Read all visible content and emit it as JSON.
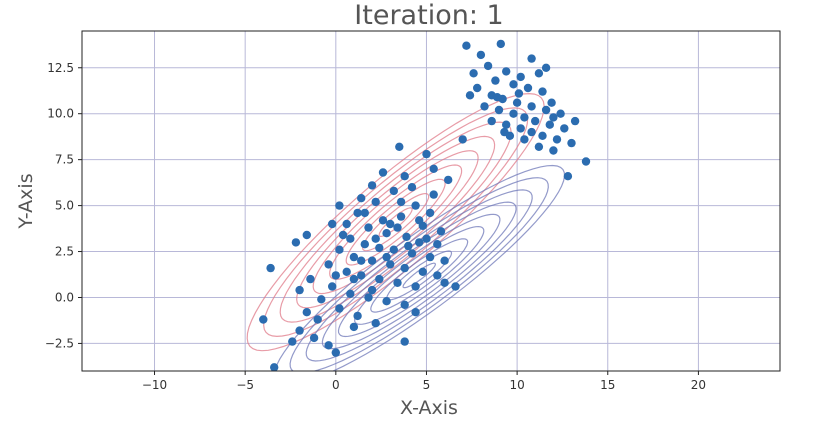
{
  "chart_data": {
    "type": "scatter",
    "title": "Iteration: 1",
    "xlabel": "X-Axis",
    "ylabel": "Y-Axis",
    "xlim": [
      -14,
      24.5
    ],
    "ylim": [
      -4,
      14.5
    ],
    "grid": true,
    "x_ticks": [
      {
        "value": -10,
        "label": "−10"
      },
      {
        "value": -5,
        "label": "−5"
      },
      {
        "value": 0,
        "label": "0"
      },
      {
        "value": 5,
        "label": "5"
      },
      {
        "value": 10,
        "label": "10"
      },
      {
        "value": 15,
        "label": "15"
      },
      {
        "value": 20,
        "label": "20"
      }
    ],
    "y_ticks": [
      {
        "value": -2.5,
        "label": "−2.5"
      },
      {
        "value": 0,
        "label": "0.0"
      },
      {
        "value": 2.5,
        "label": "2.5"
      },
      {
        "value": 5,
        "label": "5.0"
      },
      {
        "value": 7.5,
        "label": "7.5"
      },
      {
        "value": 10,
        "label": "10.0"
      },
      {
        "value": 12.5,
        "label": "12.5"
      }
    ],
    "point_color": "#2b6cb0",
    "grid_color": "#b8b8d8",
    "points": [
      [
        7.2,
        13.7
      ],
      [
        9.1,
        13.8
      ],
      [
        8.0,
        13.2
      ],
      [
        10.8,
        13.0
      ],
      [
        11.6,
        12.5
      ],
      [
        8.4,
        12.6
      ],
      [
        7.6,
        12.2
      ],
      [
        9.4,
        12.3
      ],
      [
        10.2,
        12.0
      ],
      [
        11.2,
        12.2
      ],
      [
        8.8,
        11.8
      ],
      [
        9.8,
        11.6
      ],
      [
        10.6,
        11.4
      ],
      [
        11.4,
        11.2
      ],
      [
        7.8,
        11.4
      ],
      [
        8.6,
        11.0
      ],
      [
        9.2,
        10.8
      ],
      [
        10.0,
        10.6
      ],
      [
        10.8,
        10.4
      ],
      [
        11.6,
        10.2
      ],
      [
        12.0,
        9.8
      ],
      [
        8.2,
        10.4
      ],
      [
        9.0,
        10.2
      ],
      [
        9.8,
        10.0
      ],
      [
        10.4,
        9.8
      ],
      [
        11.0,
        9.6
      ],
      [
        11.8,
        9.4
      ],
      [
        12.6,
        9.2
      ],
      [
        13.2,
        9.6
      ],
      [
        8.6,
        9.6
      ],
      [
        9.4,
        9.4
      ],
      [
        10.2,
        9.2
      ],
      [
        10.8,
        9.0
      ],
      [
        11.4,
        8.8
      ],
      [
        12.2,
        8.6
      ],
      [
        13.0,
        8.4
      ],
      [
        9.6,
        8.8
      ],
      [
        10.4,
        8.6
      ],
      [
        11.2,
        8.2
      ],
      [
        12.0,
        8.0
      ],
      [
        12.8,
        6.6
      ],
      [
        13.8,
        7.4
      ],
      [
        8.9,
        10.9
      ],
      [
        10.1,
        11.1
      ],
      [
        11.9,
        10.6
      ],
      [
        7.4,
        11.0
      ],
      [
        12.4,
        10.0
      ],
      [
        9.3,
        9.0
      ],
      [
        3.5,
        8.2
      ],
      [
        5.0,
        7.8
      ],
      [
        7.0,
        8.6
      ],
      [
        5.4,
        7.0
      ],
      [
        3.8,
        6.6
      ],
      [
        2.0,
        6.1
      ],
      [
        6.2,
        6.4
      ],
      [
        4.2,
        6.0
      ],
      [
        3.2,
        5.8
      ],
      [
        0.2,
        5.0
      ],
      [
        2.2,
        5.2
      ],
      [
        4.4,
        5.0
      ],
      [
        5.2,
        4.6
      ],
      [
        1.2,
        4.6
      ],
      [
        0.6,
        4.0
      ],
      [
        2.6,
        4.2
      ],
      [
        3.6,
        4.4
      ],
      [
        4.8,
        3.9
      ],
      [
        5.8,
        3.6
      ],
      [
        1.8,
        3.8
      ],
      [
        2.8,
        3.5
      ],
      [
        3.9,
        3.3
      ],
      [
        4.6,
        3.0
      ],
      [
        5.6,
        2.9
      ],
      [
        0.8,
        3.2
      ],
      [
        1.6,
        2.9
      ],
      [
        2.4,
        2.7
      ],
      [
        3.2,
        2.6
      ],
      [
        4.2,
        2.4
      ],
      [
        5.2,
        2.2
      ],
      [
        6.0,
        2.0
      ],
      [
        0.2,
        2.6
      ],
      [
        1.0,
        2.2
      ],
      [
        2.0,
        2.0
      ],
      [
        3.0,
        1.8
      ],
      [
        3.8,
        1.6
      ],
      [
        4.8,
        1.4
      ],
      [
        5.6,
        1.2
      ],
      [
        -0.4,
        1.8
      ],
      [
        0.6,
        1.4
      ],
      [
        1.4,
        1.2
      ],
      [
        2.4,
        1.0
      ],
      [
        3.4,
        0.8
      ],
      [
        4.4,
        0.6
      ],
      [
        6.0,
        0.8
      ],
      [
        -0.2,
        0.6
      ],
      [
        0.8,
        0.2
      ],
      [
        1.8,
        0.0
      ],
      [
        2.8,
        -0.2
      ],
      [
        3.8,
        -0.4
      ],
      [
        4.4,
        -0.8
      ],
      [
        -0.8,
        -0.1
      ],
      [
        0.2,
        -0.6
      ],
      [
        1.2,
        -1.0
      ],
      [
        2.2,
        -1.4
      ],
      [
        1.0,
        -1.6
      ],
      [
        -1.0,
        -1.2
      ],
      [
        -1.6,
        -0.8
      ],
      [
        -2.0,
        0.4
      ],
      [
        -1.4,
        1.0
      ],
      [
        -2.2,
        3.0
      ],
      [
        -1.6,
        3.4
      ],
      [
        -3.6,
        1.6
      ],
      [
        -2.0,
        -1.8
      ],
      [
        -2.4,
        -2.4
      ],
      [
        -1.2,
        -2.2
      ],
      [
        -0.4,
        -2.6
      ],
      [
        0.0,
        -3.0
      ],
      [
        -4.0,
        -1.2
      ],
      [
        -3.4,
        -3.8
      ],
      [
        3.8,
        -2.4
      ],
      [
        6.6,
        0.6
      ],
      [
        1.4,
        5.4
      ],
      [
        2.6,
        6.8
      ],
      [
        -0.2,
        4.0
      ],
      [
        1.4,
        2.0
      ],
      [
        2.2,
        3.2
      ],
      [
        3.0,
        4.0
      ],
      [
        4.0,
        2.8
      ],
      [
        4.6,
        4.2
      ],
      [
        5.0,
        3.2
      ],
      [
        1.0,
        1.0
      ],
      [
        2.0,
        0.4
      ],
      [
        0.4,
        3.4
      ],
      [
        3.6,
        5.2
      ],
      [
        2.8,
        2.2
      ],
      [
        3.4,
        3.8
      ],
      [
        1.6,
        4.6
      ],
      [
        5.4,
        5.6
      ],
      [
        0.0,
        1.2
      ]
    ]
  }
}
